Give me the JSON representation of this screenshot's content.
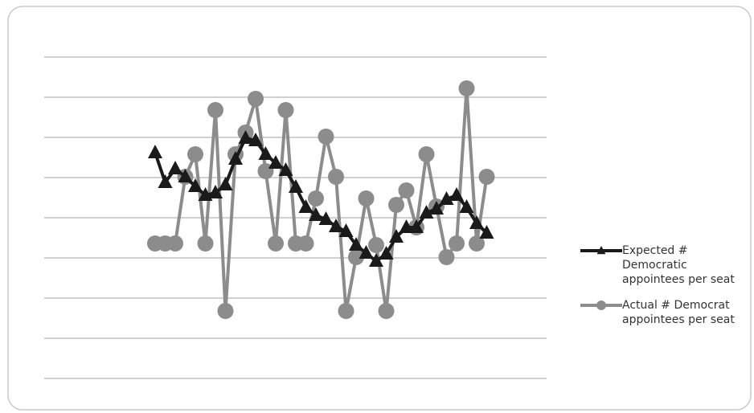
{
  "chart_data": {
    "type": "line",
    "categories": [
      null,
      null,
      null,
      null,
      null,
      null,
      null,
      null,
      null,
      null,
      null,
      null,
      null,
      null,
      null,
      null,
      null,
      null,
      null,
      null,
      null,
      null,
      null,
      null,
      null,
      null,
      null,
      null,
      null,
      null,
      null,
      null,
      null,
      null
    ],
    "series": [
      {
        "name": "Expected # Democratic appointees per seat",
        "color": "#1a1a1a",
        "marker": "triangle",
        "values": [
          5.62,
          4.88,
          5.22,
          5.02,
          4.78,
          4.56,
          4.62,
          4.82,
          5.46,
          5.98,
          5.92,
          5.58,
          5.36,
          5.18,
          4.76,
          4.26,
          4.06,
          3.96,
          3.78,
          3.66,
          3.32,
          3.12,
          2.92,
          3.1,
          3.52,
          3.76,
          3.76,
          4.12,
          4.22,
          4.46,
          4.56,
          4.26,
          3.86,
          3.62
        ]
      },
      {
        "name": "Actual # Democrat appointees per seat",
        "color": "#8c8c8c",
        "marker": "circle",
        "values": [
          3.36,
          3.36,
          3.36,
          5.02,
          5.58,
          3.36,
          6.68,
          1.68,
          5.58,
          6.12,
          6.96,
          5.16,
          3.36,
          6.68,
          3.36,
          3.36,
          4.48,
          6.02,
          5.02,
          1.68,
          3.02,
          4.48,
          3.32,
          1.68,
          4.32,
          4.68,
          3.76,
          5.58,
          4.28,
          3.02,
          3.36,
          7.22,
          3.36,
          5.02
        ]
      }
    ],
    "ylim": [
      0,
      8
    ],
    "yticks": [
      0,
      1,
      2,
      3,
      4,
      5,
      6,
      7,
      8
    ],
    "grid": true,
    "legend": "right"
  }
}
